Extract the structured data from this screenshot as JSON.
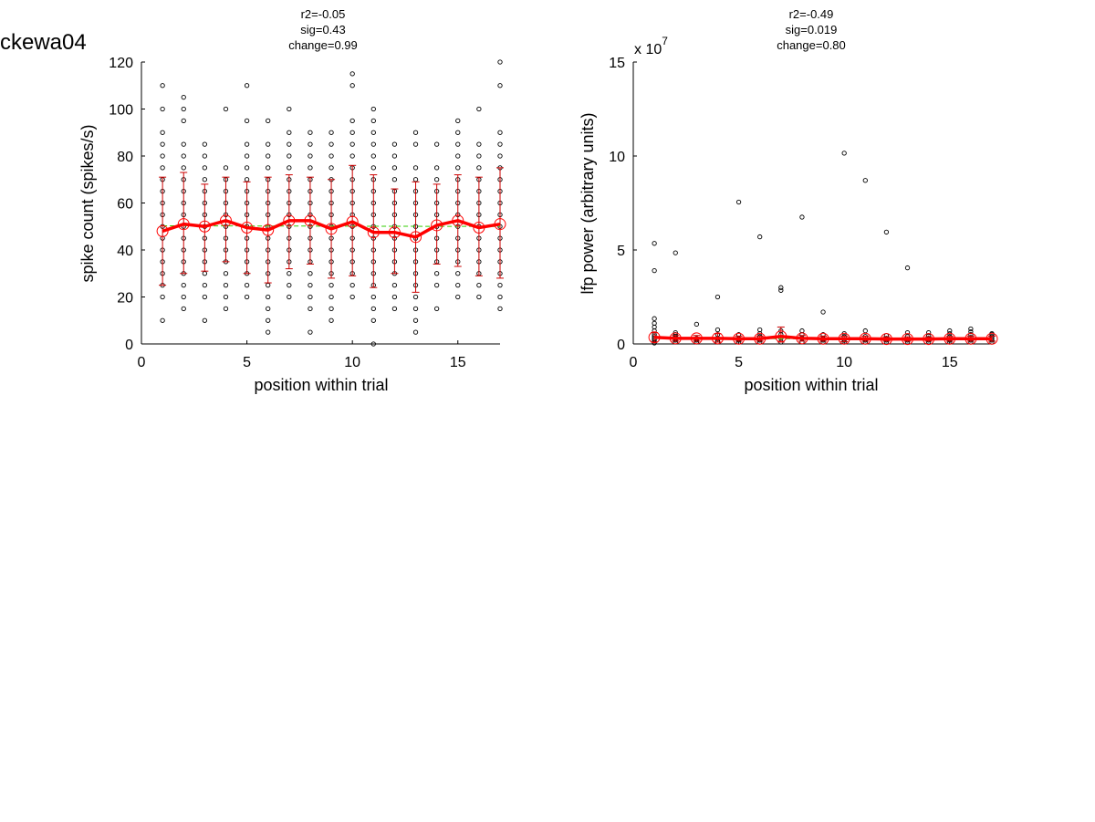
{
  "figure_title": "ckewa04",
  "chart_data": [
    {
      "type": "scatter",
      "stats": [
        "r2=-0.05",
        "sig=0.43",
        "change=0.99"
      ],
      "xlabel": "position within trial",
      "ylabel": "spike count (spikes/s)",
      "xlim": [
        0,
        17
      ],
      "ylim": [
        0,
        120
      ],
      "xticks": [
        "0",
        "5",
        "10",
        "15"
      ],
      "yticks": [
        "0",
        "20",
        "40",
        "60",
        "80",
        "100",
        "120"
      ],
      "exponent_label": "",
      "colors": {
        "points": "#000000",
        "mean": "#ff0000",
        "errorbar": "#cc0000",
        "fit": "#33cc00"
      },
      "fit_line": {
        "x": [
          1,
          17
        ],
        "y": [
          50.3,
          50.0
        ]
      },
      "series": {
        "x": [
          1,
          2,
          3,
          4,
          5,
          6,
          7,
          8,
          9,
          10,
          11,
          12,
          13,
          14,
          15,
          16,
          17
        ],
        "mean": [
          48,
          51,
          50,
          52.5,
          49.5,
          48.5,
          52.5,
          52.5,
          49,
          52,
          47.5,
          47.5,
          45.5,
          50.5,
          52.5,
          49.5,
          51
        ],
        "err_low": [
          25,
          30,
          31,
          35,
          30,
          26,
          32,
          34,
          28,
          29,
          24,
          30,
          22,
          34,
          33,
          29,
          28
        ],
        "err_high": [
          71,
          73,
          68,
          71,
          69,
          71,
          72,
          71,
          70,
          76,
          72,
          66,
          69,
          68,
          72,
          71,
          75
        ],
        "samples": [
          [
            10,
            20,
            25,
            30,
            35,
            40,
            45,
            50,
            55,
            60,
            65,
            70,
            75,
            80,
            85,
            90,
            100,
            110
          ],
          [
            15,
            20,
            25,
            30,
            35,
            40,
            45,
            50,
            55,
            60,
            65,
            70,
            75,
            80,
            85,
            95,
            100,
            105
          ],
          [
            10,
            20,
            25,
            30,
            35,
            40,
            45,
            50,
            55,
            60,
            65,
            70,
            75,
            80,
            85
          ],
          [
            15,
            20,
            25,
            30,
            35,
            40,
            45,
            50,
            55,
            60,
            65,
            70,
            75,
            100
          ],
          [
            20,
            25,
            30,
            35,
            40,
            45,
            50,
            55,
            60,
            65,
            70,
            75,
            80,
            85,
            95,
            110
          ],
          [
            5,
            10,
            15,
            20,
            25,
            30,
            35,
            40,
            45,
            50,
            55,
            60,
            65,
            70,
            75,
            80,
            85,
            95
          ],
          [
            20,
            25,
            30,
            35,
            40,
            45,
            50,
            55,
            60,
            65,
            70,
            75,
            80,
            85,
            90,
            100
          ],
          [
            5,
            15,
            20,
            25,
            30,
            35,
            40,
            45,
            50,
            55,
            60,
            65,
            70,
            75,
            80,
            85,
            90
          ],
          [
            10,
            15,
            20,
            25,
            30,
            35,
            40,
            45,
            50,
            55,
            60,
            65,
            70,
            75,
            80,
            85,
            90
          ],
          [
            20,
            25,
            30,
            35,
            40,
            45,
            50,
            55,
            60,
            65,
            70,
            75,
            80,
            85,
            90,
            95,
            110,
            115
          ],
          [
            0,
            10,
            15,
            20,
            25,
            30,
            35,
            40,
            45,
            50,
            55,
            60,
            65,
            70,
            75,
            80,
            85,
            90,
            95,
            100
          ],
          [
            15,
            20,
            25,
            30,
            35,
            40,
            45,
            50,
            55,
            60,
            65,
            70,
            75,
            80,
            85
          ],
          [
            5,
            10,
            15,
            20,
            25,
            30,
            35,
            40,
            45,
            50,
            55,
            60,
            65,
            70,
            75,
            85,
            90
          ],
          [
            15,
            25,
            30,
            35,
            40,
            45,
            50,
            55,
            60,
            65,
            70,
            75,
            85
          ],
          [
            20,
            25,
            30,
            35,
            40,
            45,
            50,
            55,
            60,
            65,
            70,
            75,
            80,
            85,
            90,
            95
          ],
          [
            20,
            25,
            30,
            35,
            40,
            45,
            50,
            55,
            60,
            65,
            70,
            75,
            80,
            85,
            100
          ],
          [
            15,
            20,
            25,
            30,
            35,
            40,
            45,
            50,
            55,
            60,
            65,
            70,
            75,
            80,
            85,
            90,
            110,
            120
          ]
        ]
      }
    },
    {
      "type": "scatter",
      "stats": [
        "r2=-0.49",
        "sig=0.019",
        "change=0.80"
      ],
      "xlabel": "position within trial",
      "ylabel": "lfp power (arbitrary units)",
      "xlim": [
        0,
        17
      ],
      "ylim": [
        0,
        15
      ],
      "xticks": [
        "0",
        "5",
        "10",
        "15"
      ],
      "yticks": [
        "0",
        "5",
        "10",
        "15"
      ],
      "exponent_label": "x 10",
      "exponent_power": "7",
      "colors": {
        "points": "#000000",
        "mean": "#ff0000",
        "errorbar": "#cc0000",
        "fit": "#33cc00"
      },
      "fit_line": {
        "x": [
          1,
          17
        ],
        "y": [
          0.3,
          0.25
        ]
      },
      "series": {
        "x": [
          1,
          2,
          3,
          4,
          5,
          6,
          7,
          8,
          9,
          10,
          11,
          12,
          13,
          14,
          15,
          16,
          17
        ],
        "mean": [
          0.35,
          0.3,
          0.3,
          0.3,
          0.28,
          0.28,
          0.4,
          0.3,
          0.28,
          0.28,
          0.28,
          0.26,
          0.26,
          0.26,
          0.28,
          0.28,
          0.28
        ],
        "err_low": [
          0.1,
          0.15,
          0.15,
          0.1,
          0.15,
          0.15,
          0.1,
          0.15,
          0.15,
          0.12,
          0.15,
          0.15,
          0.15,
          0.15,
          0.15,
          0.15,
          0.15
        ],
        "err_high": [
          0.6,
          0.45,
          0.45,
          0.55,
          0.42,
          0.42,
          0.9,
          0.45,
          0.42,
          0.42,
          0.42,
          0.38,
          0.38,
          0.38,
          0.4,
          0.42,
          0.42
        ],
        "samples": [
          [
            0.05,
            0.1,
            0.2,
            0.3,
            0.4,
            0.5,
            0.7,
            0.9,
            1.1,
            1.35,
            3.9,
            5.35
          ],
          [
            0.1,
            0.2,
            0.3,
            0.4,
            0.5,
            0.6,
            4.85
          ],
          [
            0.1,
            0.2,
            0.3,
            1.05
          ],
          [
            0.1,
            0.2,
            0.3,
            0.5,
            0.75,
            2.5
          ],
          [
            0.1,
            0.2,
            0.3,
            0.5,
            7.55
          ],
          [
            0.1,
            0.2,
            0.4,
            0.55,
            0.75,
            5.7
          ],
          [
            0.1,
            0.3,
            0.5,
            0.7,
            2.85,
            3.0
          ],
          [
            0.1,
            0.3,
            0.5,
            0.7,
            6.75
          ],
          [
            0.1,
            0.2,
            0.3,
            0.5,
            1.7
          ],
          [
            0.1,
            0.2,
            0.4,
            0.55,
            10.15
          ],
          [
            0.1,
            0.2,
            0.4,
            0.7,
            8.7
          ],
          [
            0.1,
            0.2,
            0.3,
            0.45,
            5.95
          ],
          [
            0.1,
            0.2,
            0.4,
            0.6,
            4.05
          ],
          [
            0.1,
            0.2,
            0.3,
            0.45,
            0.6
          ],
          [
            0.1,
            0.2,
            0.4,
            0.55,
            0.7
          ],
          [
            0.1,
            0.2,
            0.35,
            0.5,
            0.65,
            0.8
          ],
          [
            0.1,
            0.2,
            0.3,
            0.4,
            0.5,
            0.55
          ]
        ]
      }
    }
  ]
}
